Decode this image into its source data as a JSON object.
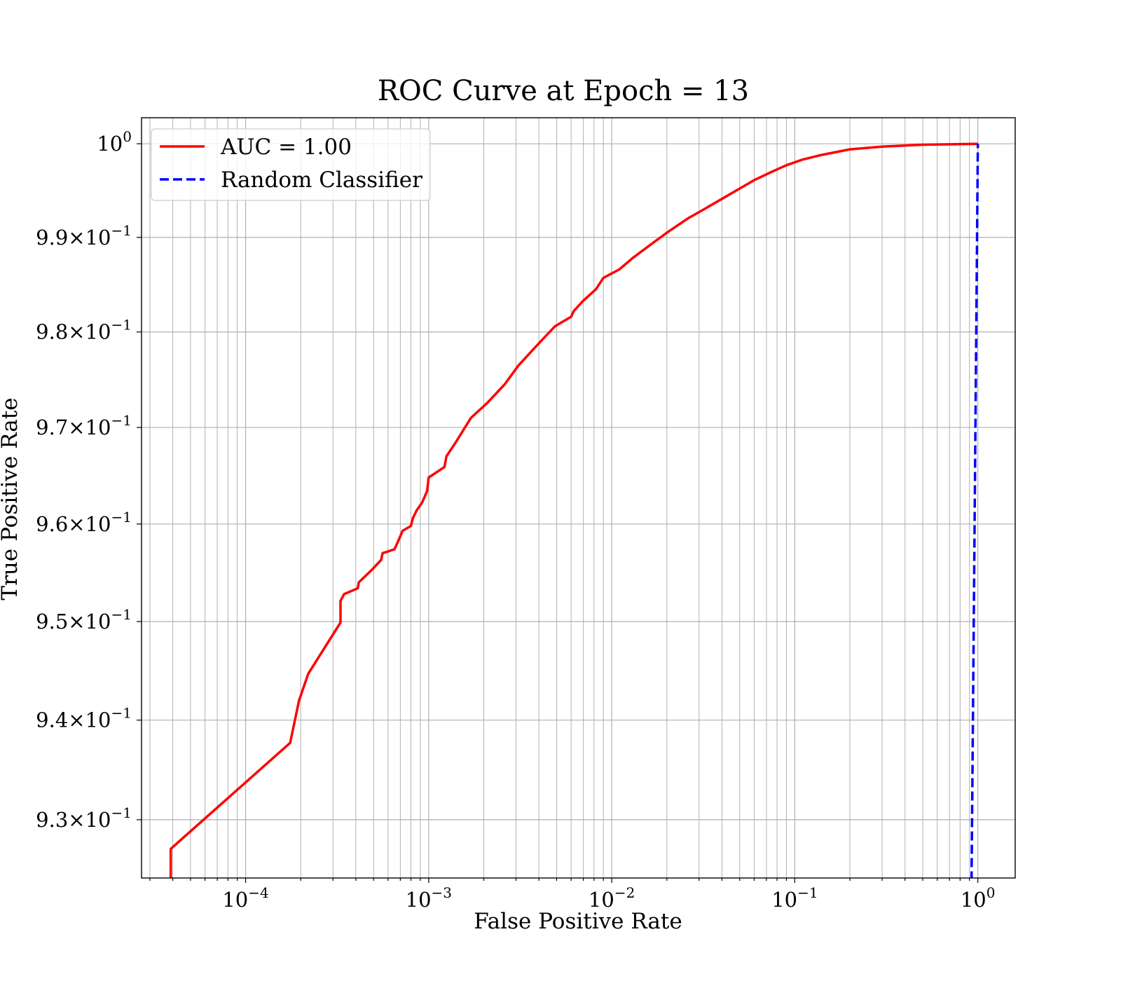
{
  "chart_data": {
    "type": "line",
    "title": "ROC Curve at Epoch = 13",
    "xlabel": "False Positive Rate",
    "ylabel": "True Positive Rate",
    "xscale": "log",
    "yscale": "log",
    "xlim": [
      2.7e-05,
      1.6
    ],
    "ylim": [
      0.9242,
      1.0028
    ],
    "grid": true,
    "grid_minor": true,
    "legend_position": "top-left",
    "x_ticks": [
      {
        "value": 0.0001,
        "base": "10",
        "exp": "−4"
      },
      {
        "value": 0.001,
        "base": "10",
        "exp": "−3"
      },
      {
        "value": 0.01,
        "base": "10",
        "exp": "−2"
      },
      {
        "value": 0.1,
        "base": "10",
        "exp": "−1"
      },
      {
        "value": 1,
        "base": "10",
        "exp": "0"
      }
    ],
    "y_ticks": [
      {
        "value": 1.0,
        "mant": "",
        "base": "10",
        "exp": "0"
      },
      {
        "value": 0.99,
        "mant": "9.9",
        "base": "10",
        "exp": "−1"
      },
      {
        "value": 0.98,
        "mant": "9.8",
        "base": "10",
        "exp": "−1"
      },
      {
        "value": 0.97,
        "mant": "9.7",
        "base": "10",
        "exp": "−1"
      },
      {
        "value": 0.96,
        "mant": "9.6",
        "base": "10",
        "exp": "−1"
      },
      {
        "value": 0.95,
        "mant": "9.5",
        "base": "10",
        "exp": "−1"
      },
      {
        "value": 0.94,
        "mant": "9.4",
        "base": "10",
        "exp": "−1"
      },
      {
        "value": 0.93,
        "mant": "9.3",
        "base": "10",
        "exp": "−1"
      }
    ],
    "times_sign": "×",
    "series": [
      {
        "name": "AUC = 1.00",
        "color": "#ff0000",
        "style": "solid",
        "x": [
          3.9e-05,
          3.9e-05,
          0.000175,
          0.000196,
          0.00022,
          0.00033,
          0.00033,
          0.000345,
          0.00041,
          0.000415,
          0.00049,
          0.00055,
          0.00056,
          0.00065,
          0.00068,
          0.00072,
          0.0008,
          0.00082,
          0.00086,
          0.00092,
          0.00094,
          0.00098,
          0.001,
          0.00122,
          0.00125,
          0.0014,
          0.0017,
          0.0021,
          0.0026,
          0.0031,
          0.004,
          0.0049,
          0.006,
          0.0062,
          0.007,
          0.0082,
          0.009,
          0.011,
          0.013,
          0.0165,
          0.02,
          0.026,
          0.032,
          0.04,
          0.05,
          0.06,
          0.075,
          0.09,
          0.11,
          0.14,
          0.2,
          0.3,
          0.5,
          1.0
        ],
        "y": [
          0.9242,
          0.9271,
          0.9377,
          0.942,
          0.9447,
          0.9499,
          0.9521,
          0.9528,
          0.9534,
          0.954,
          0.9553,
          0.9563,
          0.957,
          0.9574,
          0.9582,
          0.9593,
          0.9598,
          0.9606,
          0.9614,
          0.9622,
          0.9626,
          0.9634,
          0.9648,
          0.9659,
          0.967,
          0.9684,
          0.971,
          0.9726,
          0.9745,
          0.9765,
          0.9788,
          0.9806,
          0.9816,
          0.9822,
          0.9833,
          0.9845,
          0.9857,
          0.9866,
          0.9878,
          0.9893,
          0.9905,
          0.992,
          0.993,
          0.9941,
          0.9952,
          0.9961,
          0.997,
          0.9977,
          0.9983,
          0.9988,
          0.9994,
          0.9997,
          0.9999,
          1.0
        ]
      },
      {
        "name": "Random Classifier",
        "color": "#0000ff",
        "style": "dashed",
        "x": [
          0.92,
          1.0
        ],
        "y": [
          0.92,
          1.0
        ]
      }
    ]
  }
}
